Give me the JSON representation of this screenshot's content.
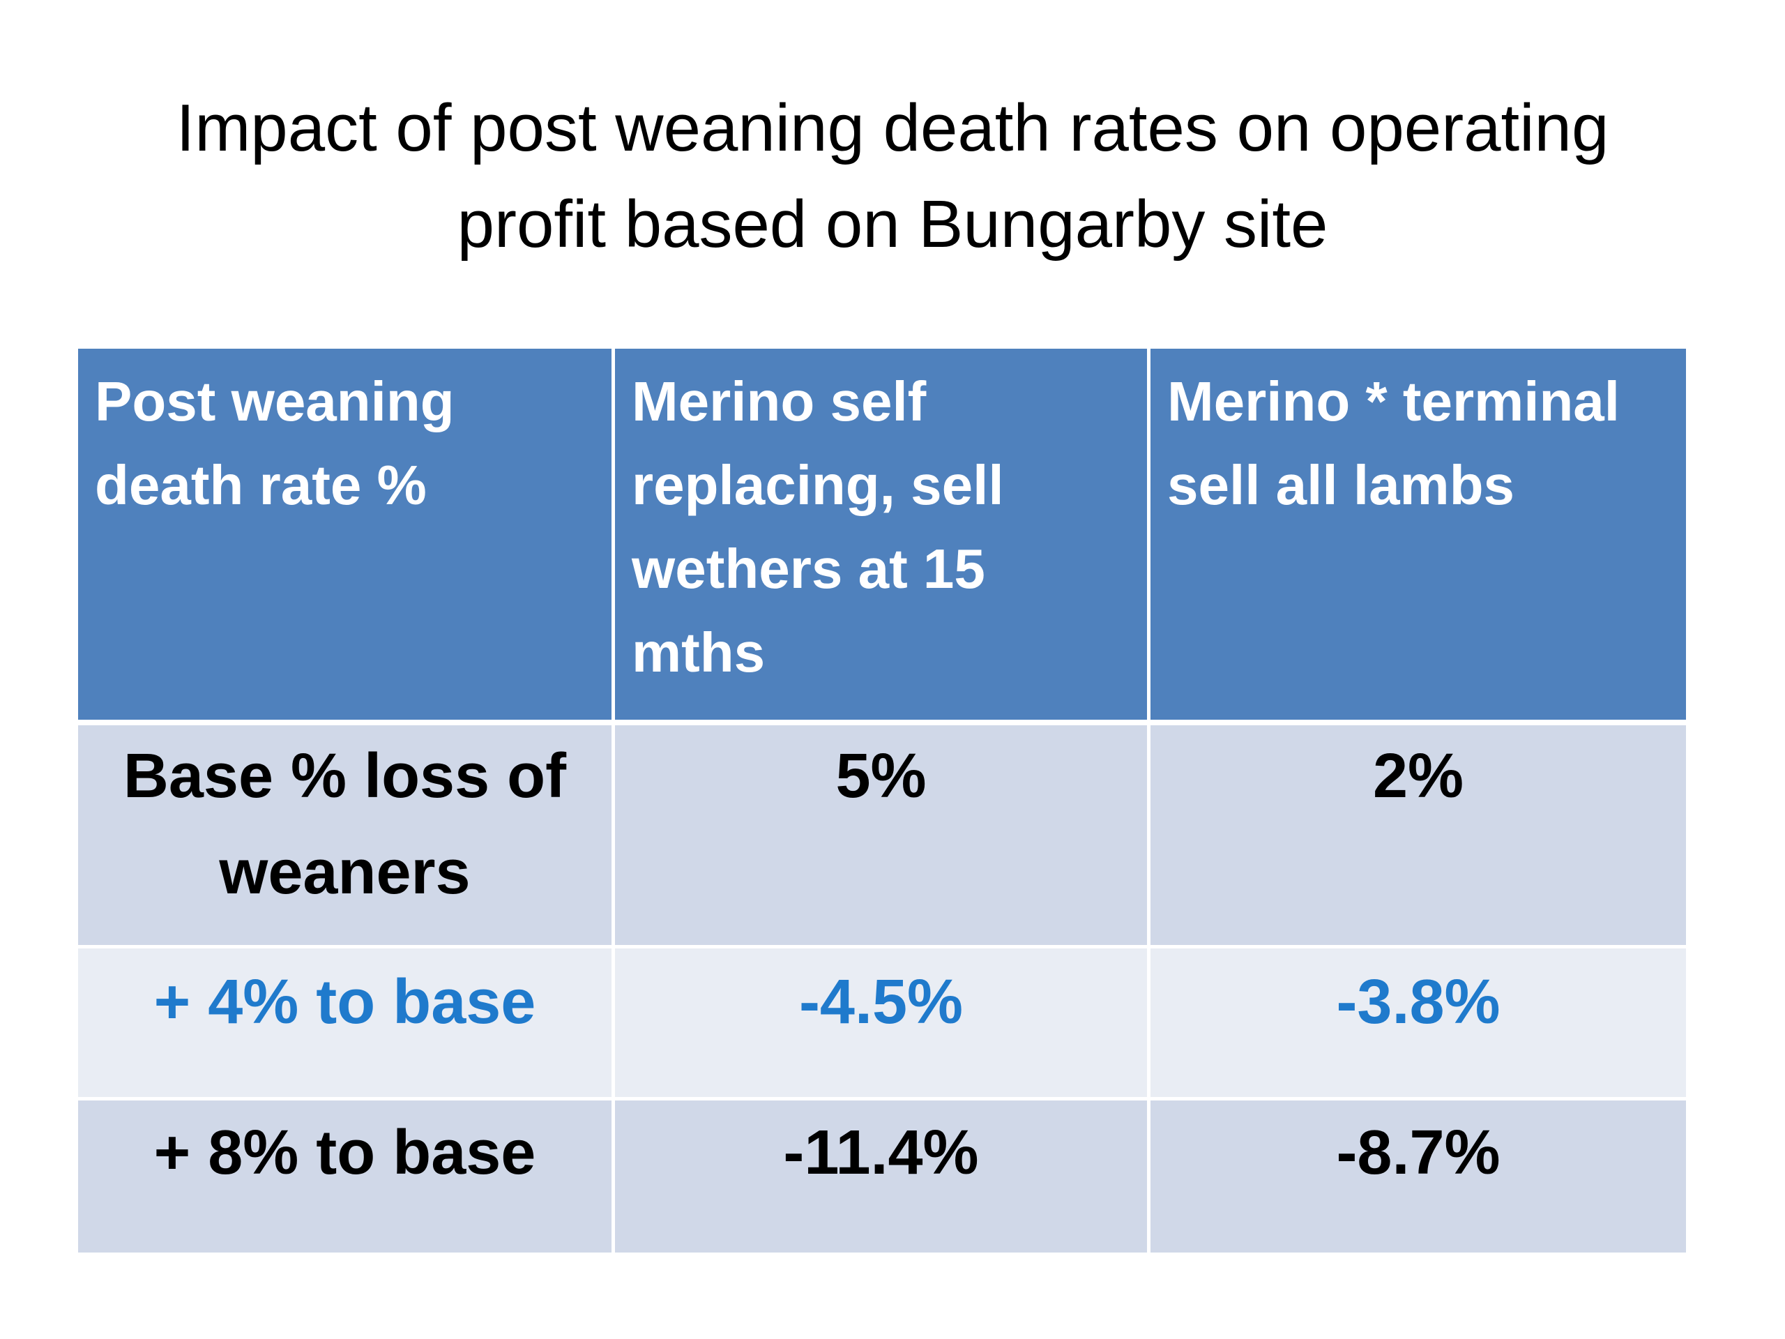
{
  "title": {
    "line1": "Impact of post weaning death rates on operating",
    "line2": "profit based on Bungarby site"
  },
  "table": {
    "headers": [
      "Post weaning death rate %",
      "Merino self replacing, sell wethers at 15 mths",
      "Merino * terminal sell all lambs"
    ],
    "rows": [
      {
        "label": "Base % loss of weaners",
        "values": [
          "5%",
          "2%"
        ]
      },
      {
        "label": "+ 4% to base",
        "values": [
          "-4.5%",
          "-3.8%"
        ]
      },
      {
        "label": "+ 8% to base",
        "values": [
          "-11.4%",
          "-8.7%"
        ]
      }
    ]
  },
  "colors": {
    "header_bg": "#4f81bd",
    "header_text": "#ffffff",
    "row_dark_bg": "#d0d8e8",
    "row_light_bg": "#e9edf4",
    "highlight_text": "#1f7acc"
  }
}
